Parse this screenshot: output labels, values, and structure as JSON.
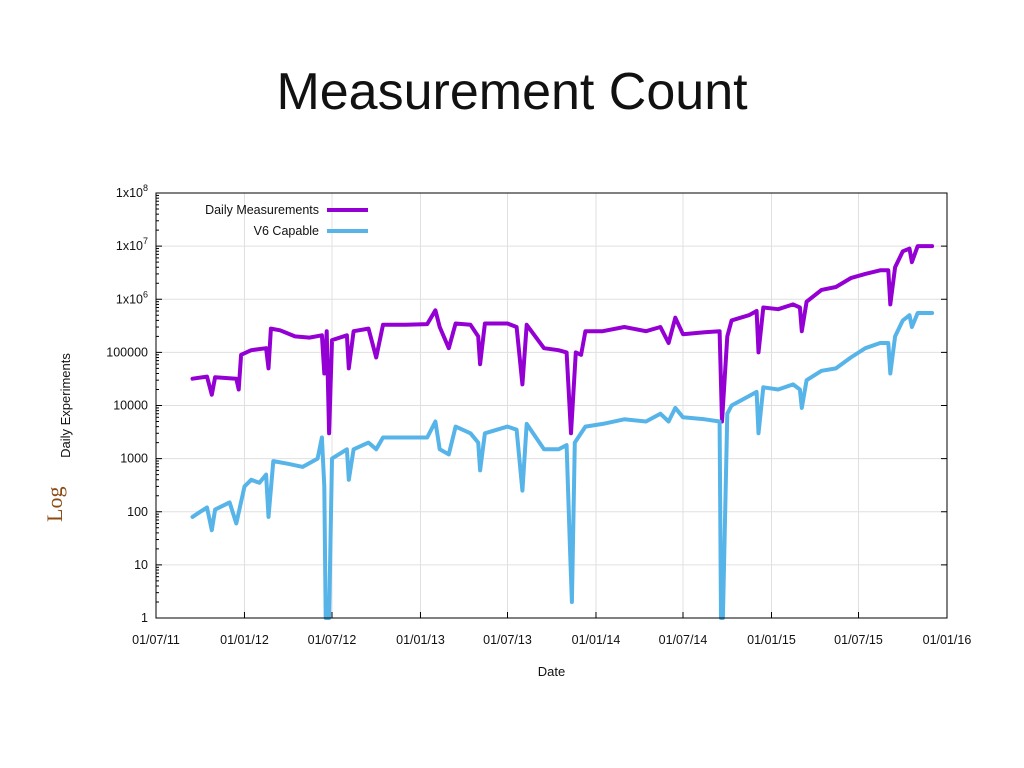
{
  "slide": {
    "title": "Measurement Count",
    "side_note": "Log"
  },
  "colors": {
    "series1": "#9400d3",
    "series2": "#56b4e9",
    "grid": "#e0e0e0",
    "axis": "#000000"
  },
  "chart_data": {
    "type": "line",
    "title": "",
    "xlabel": "Date",
    "ylabel": "Daily Experiments",
    "yscale": "log",
    "ylim": [
      1,
      100000000
    ],
    "xlim": [
      "2011-07-01",
      "2016-01-01"
    ],
    "x_ticks": [
      "01/07/11",
      "01/01/12",
      "01/07/12",
      "01/01/13",
      "01/07/13",
      "01/01/14",
      "01/07/14",
      "01/01/15",
      "01/07/15",
      "01/01/16"
    ],
    "y_ticks": [
      {
        "value": 1,
        "base": "1",
        "exp": ""
      },
      {
        "value": 10,
        "base": "10",
        "exp": ""
      },
      {
        "value": 100,
        "base": "100",
        "exp": ""
      },
      {
        "value": 1000,
        "base": "1000",
        "exp": ""
      },
      {
        "value": 10000,
        "base": "10000",
        "exp": ""
      },
      {
        "value": 100000,
        "base": "100000",
        "exp": ""
      },
      {
        "value": 1000000,
        "base": "1x10",
        "exp": "6"
      },
      {
        "value": 10000000,
        "base": "1x10",
        "exp": "7"
      },
      {
        "value": 100000000,
        "base": "1x10",
        "exp": "8"
      }
    ],
    "legend_position": "top-left",
    "series": [
      {
        "name": "Daily Measurements",
        "color": "#9400d3",
        "points": [
          [
            "2011-09-15",
            32000
          ],
          [
            "2011-10-15",
            35000
          ],
          [
            "2011-10-25",
            16000
          ],
          [
            "2011-11-01",
            34000
          ],
          [
            "2011-12-15",
            32000
          ],
          [
            "2011-12-20",
            20000
          ],
          [
            "2011-12-25",
            90000
          ],
          [
            "2012-01-15",
            110000
          ],
          [
            "2012-02-15",
            120000
          ],
          [
            "2012-02-20",
            50000
          ],
          [
            "2012-02-25",
            280000
          ],
          [
            "2012-03-15",
            260000
          ],
          [
            "2012-04-15",
            200000
          ],
          [
            "2012-05-15",
            190000
          ],
          [
            "2012-06-10",
            210000
          ],
          [
            "2012-06-15",
            40000
          ],
          [
            "2012-06-20",
            250000
          ],
          [
            "2012-06-25",
            3000
          ],
          [
            "2012-07-01",
            170000
          ],
          [
            "2012-08-01",
            210000
          ],
          [
            "2012-08-05",
            50000
          ],
          [
            "2012-08-15",
            250000
          ],
          [
            "2012-09-15",
            280000
          ],
          [
            "2012-10-01",
            80000
          ],
          [
            "2012-10-15",
            330000
          ],
          [
            "2012-12-01",
            330000
          ],
          [
            "2013-01-15",
            340000
          ],
          [
            "2013-02-01",
            620000
          ],
          [
            "2013-02-10",
            300000
          ],
          [
            "2013-03-01",
            120000
          ],
          [
            "2013-03-15",
            350000
          ],
          [
            "2013-04-15",
            330000
          ],
          [
            "2013-05-01",
            200000
          ],
          [
            "2013-05-05",
            60000
          ],
          [
            "2013-05-15",
            350000
          ],
          [
            "2013-07-01",
            350000
          ],
          [
            "2013-07-20",
            300000
          ],
          [
            "2013-08-01",
            25000
          ],
          [
            "2013-08-10",
            330000
          ],
          [
            "2013-09-15",
            120000
          ],
          [
            "2013-10-15",
            110000
          ],
          [
            "2013-11-01",
            100000
          ],
          [
            "2013-11-10",
            3000
          ],
          [
            "2013-11-20",
            100000
          ],
          [
            "2013-12-01",
            90000
          ],
          [
            "2013-12-10",
            250000
          ],
          [
            "2014-01-15",
            250000
          ],
          [
            "2014-03-01",
            300000
          ],
          [
            "2014-04-15",
            250000
          ],
          [
            "2014-05-15",
            300000
          ],
          [
            "2014-06-01",
            150000
          ],
          [
            "2014-06-15",
            450000
          ],
          [
            "2014-07-01",
            220000
          ],
          [
            "2014-08-15",
            240000
          ],
          [
            "2014-09-15",
            250000
          ],
          [
            "2014-09-20",
            5000
          ],
          [
            "2014-10-01",
            200000
          ],
          [
            "2014-10-10",
            400000
          ],
          [
            "2014-11-15",
            500000
          ],
          [
            "2014-12-01",
            600000
          ],
          [
            "2014-12-05",
            100000
          ],
          [
            "2014-12-15",
            700000
          ],
          [
            "2015-01-15",
            650000
          ],
          [
            "2015-02-15",
            800000
          ],
          [
            "2015-03-01",
            700000
          ],
          [
            "2015-03-05",
            250000
          ],
          [
            "2015-03-15",
            900000
          ],
          [
            "2015-04-15",
            1500000
          ],
          [
            "2015-05-15",
            1700000
          ],
          [
            "2015-06-15",
            2500000
          ],
          [
            "2015-07-15",
            3000000
          ],
          [
            "2015-08-15",
            3500000
          ],
          [
            "2015-09-01",
            3500000
          ],
          [
            "2015-09-05",
            800000
          ],
          [
            "2015-09-15",
            4000000
          ],
          [
            "2015-10-01",
            8000000
          ],
          [
            "2015-10-15",
            9000000
          ],
          [
            "2015-10-20",
            5000000
          ],
          [
            "2015-11-01",
            10000000
          ],
          [
            "2015-12-01",
            10000000
          ]
        ]
      },
      {
        "name": "V6 Capable",
        "color": "#56b4e9",
        "points": [
          [
            "2011-09-15",
            80
          ],
          [
            "2011-10-01",
            100
          ],
          [
            "2011-10-15",
            120
          ],
          [
            "2011-10-25",
            45
          ],
          [
            "2011-11-01",
            110
          ],
          [
            "2011-12-01",
            150
          ],
          [
            "2011-12-15",
            60
          ],
          [
            "2012-01-01",
            300
          ],
          [
            "2012-01-15",
            400
          ],
          [
            "2012-02-01",
            350
          ],
          [
            "2012-02-15",
            500
          ],
          [
            "2012-02-20",
            80
          ],
          [
            "2012-03-01",
            900
          ],
          [
            "2012-04-01",
            800
          ],
          [
            "2012-05-01",
            700
          ],
          [
            "2012-06-01",
            1000
          ],
          [
            "2012-06-10",
            2500
          ],
          [
            "2012-06-15",
            300
          ],
          [
            "2012-06-18",
            1
          ],
          [
            "2012-06-25",
            1
          ],
          [
            "2012-07-01",
            1000
          ],
          [
            "2012-08-01",
            1500
          ],
          [
            "2012-08-05",
            400
          ],
          [
            "2012-08-15",
            1500
          ],
          [
            "2012-09-15",
            2000
          ],
          [
            "2012-10-01",
            1500
          ],
          [
            "2012-10-15",
            2500
          ],
          [
            "2012-12-01",
            2500
          ],
          [
            "2013-01-15",
            2500
          ],
          [
            "2013-02-01",
            5000
          ],
          [
            "2013-02-10",
            1500
          ],
          [
            "2013-03-01",
            1200
          ],
          [
            "2013-03-15",
            4000
          ],
          [
            "2013-04-15",
            3000
          ],
          [
            "2013-05-01",
            2000
          ],
          [
            "2013-05-05",
            600
          ],
          [
            "2013-05-15",
            3000
          ],
          [
            "2013-07-01",
            4000
          ],
          [
            "2013-07-20",
            3500
          ],
          [
            "2013-08-01",
            250
          ],
          [
            "2013-08-10",
            4500
          ],
          [
            "2013-09-15",
            1500
          ],
          [
            "2013-10-15",
            1500
          ],
          [
            "2013-11-01",
            1800
          ],
          [
            "2013-11-08",
            20
          ],
          [
            "2013-11-12",
            2
          ],
          [
            "2013-11-18",
            2000
          ],
          [
            "2013-12-10",
            4000
          ],
          [
            "2014-01-15",
            4500
          ],
          [
            "2014-03-01",
            5500
          ],
          [
            "2014-04-15",
            5000
          ],
          [
            "2014-05-15",
            7000
          ],
          [
            "2014-06-01",
            5000
          ],
          [
            "2014-06-15",
            9000
          ],
          [
            "2014-07-01",
            6000
          ],
          [
            "2014-08-15",
            5500
          ],
          [
            "2014-09-15",
            5000
          ],
          [
            "2014-09-18",
            1
          ],
          [
            "2014-09-22",
            1
          ],
          [
            "2014-10-01",
            7000
          ],
          [
            "2014-10-10",
            10000
          ],
          [
            "2014-11-15",
            15000
          ],
          [
            "2014-12-01",
            18000
          ],
          [
            "2014-12-05",
            3000
          ],
          [
            "2014-12-15",
            22000
          ],
          [
            "2015-01-15",
            20000
          ],
          [
            "2015-02-15",
            25000
          ],
          [
            "2015-03-01",
            20000
          ],
          [
            "2015-03-05",
            9000
          ],
          [
            "2015-03-15",
            30000
          ],
          [
            "2015-04-15",
            45000
          ],
          [
            "2015-05-15",
            50000
          ],
          [
            "2015-06-15",
            80000
          ],
          [
            "2015-07-15",
            120000
          ],
          [
            "2015-08-15",
            150000
          ],
          [
            "2015-09-01",
            150000
          ],
          [
            "2015-09-05",
            40000
          ],
          [
            "2015-09-15",
            200000
          ],
          [
            "2015-10-01",
            400000
          ],
          [
            "2015-10-15",
            500000
          ],
          [
            "2015-10-20",
            300000
          ],
          [
            "2015-11-01",
            550000
          ],
          [
            "2015-12-01",
            550000
          ]
        ]
      }
    ]
  }
}
